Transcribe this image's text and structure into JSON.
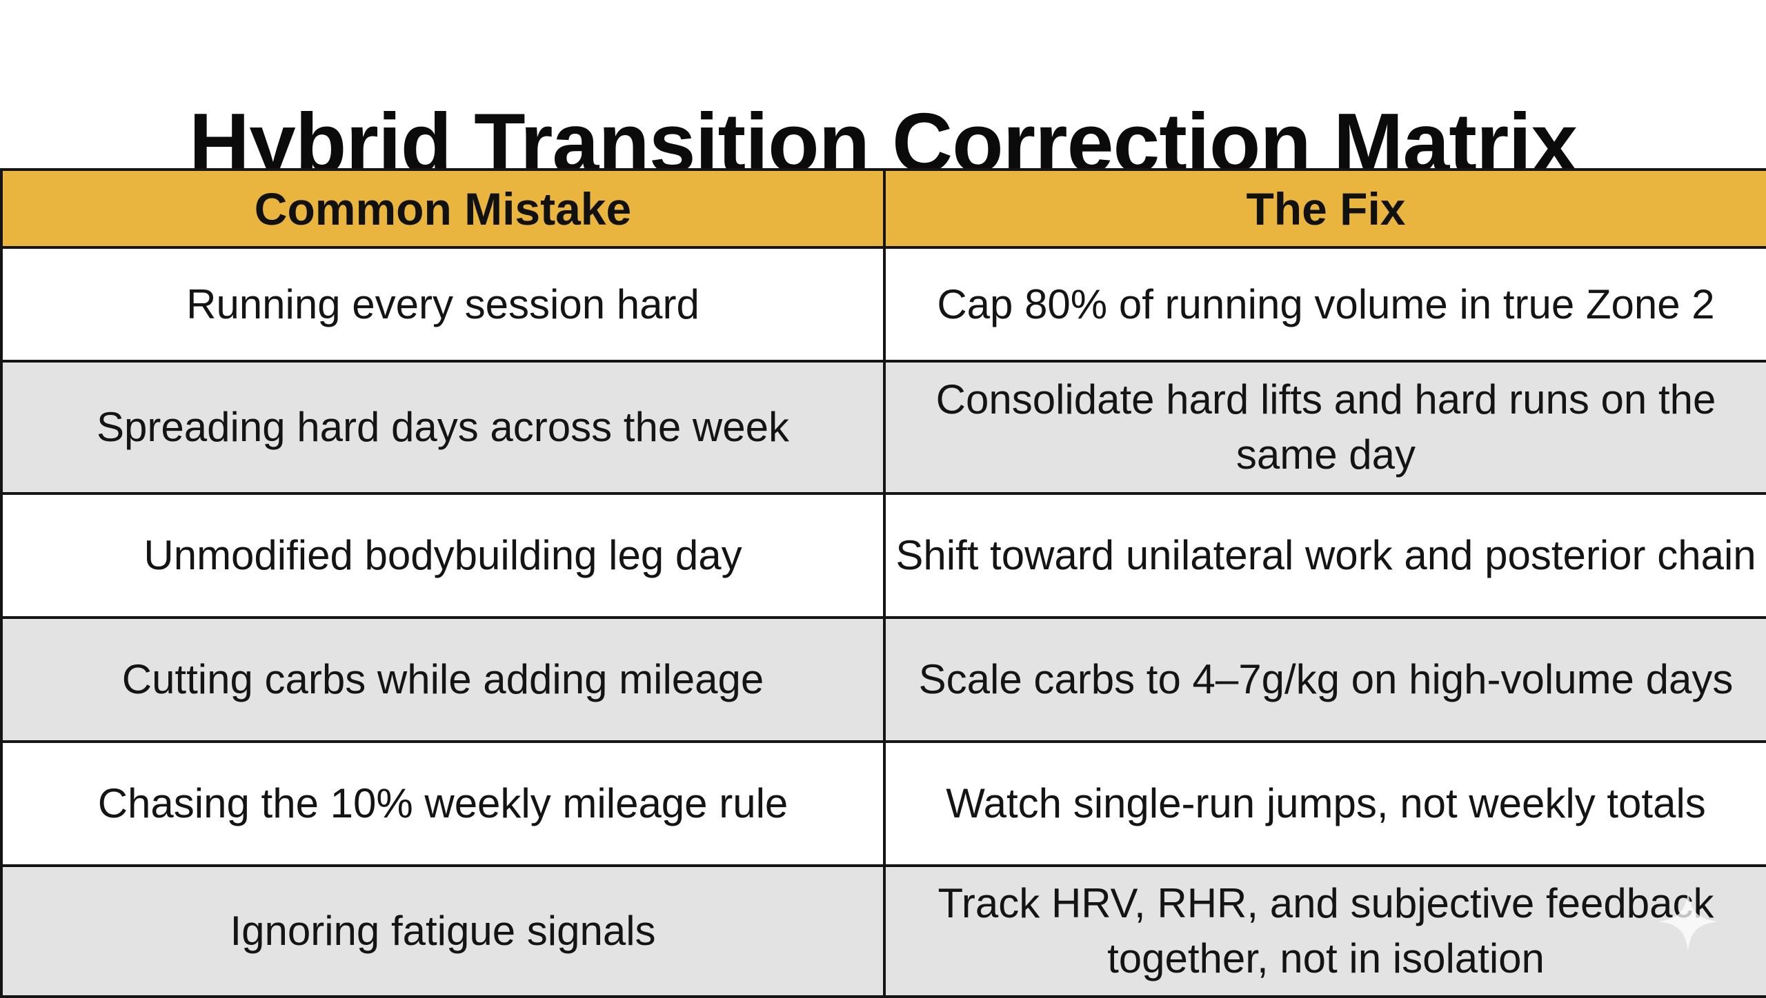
{
  "title": "Hybrid Transition Correction Matrix",
  "table": {
    "headers": [
      "Common Mistake",
      "The Fix"
    ],
    "rows": [
      {
        "mistake": "Running every session hard",
        "fix": "Cap 80% of running volume in true Zone 2"
      },
      {
        "mistake": "Spreading hard days across the week",
        "fix": "Consolidate hard lifts and hard runs on the same day"
      },
      {
        "mistake": "Unmodified bodybuilding leg day",
        "fix": "Shift toward unilateral work and posterior chain"
      },
      {
        "mistake": "Cutting carbs while adding mileage",
        "fix": "Scale carbs to 4–7g/kg on high-volume days"
      },
      {
        "mistake": "Chasing the 10% weekly mileage rule",
        "fix": "Watch single-run jumps, not weekly totals"
      },
      {
        "mistake": "Ignoring fatigue signals",
        "fix": "Track HRV, RHR, and subjective feedback together, not in isolation"
      }
    ]
  },
  "colors": {
    "header_background": "#e9b53f",
    "striped_row_background": "#e3e3e3",
    "border": "#151515"
  },
  "icons": {
    "watermark": "sparkle-icon"
  }
}
